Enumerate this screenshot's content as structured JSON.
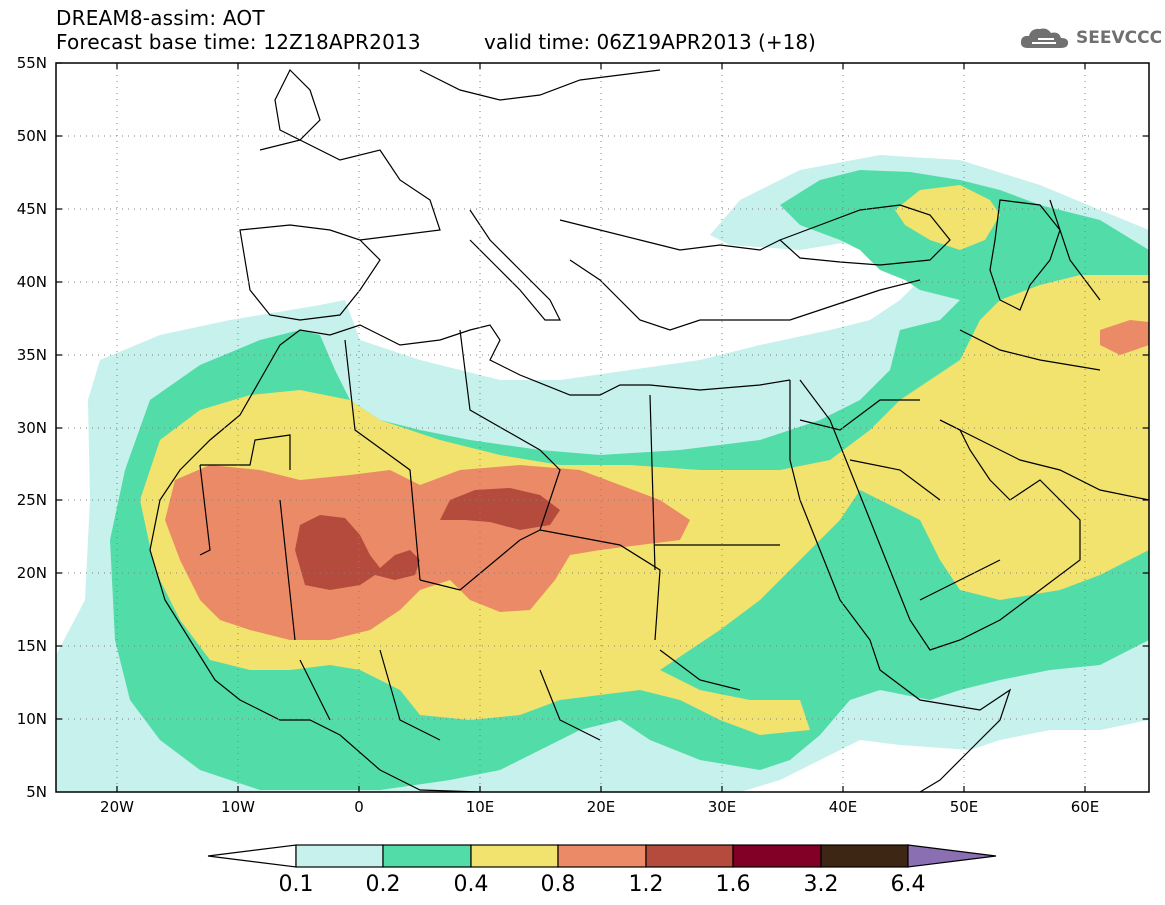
{
  "header": {
    "title": "DREAM8-assim: AOT",
    "forecast_base": "Forecast base time: 12Z18APR2013",
    "valid_time": "valid time: 06Z19APR2013 (+18)",
    "logo_text": "SEEVCCC",
    "logo_icon": "cloud-icon"
  },
  "map": {
    "lat_labels": [
      "55N",
      "50N",
      "45N",
      "40N",
      "35N",
      "30N",
      "25N",
      "20N",
      "15N",
      "10N",
      "5N"
    ],
    "lon_labels": [
      "20W",
      "10W",
      "0",
      "10E",
      "20E",
      "30E",
      "40E",
      "50E",
      "60E"
    ],
    "extent": {
      "lon": [
        -25,
        65
      ],
      "lat": [
        5,
        55
      ]
    }
  },
  "colorbar": {
    "labels": [
      "0.1",
      "0.2",
      "0.4",
      "0.8",
      "1.2",
      "1.6",
      "3.2",
      "6.4"
    ],
    "colors": [
      "#ffffff",
      "#c6f1ec",
      "#52dca8",
      "#f2e26e",
      "#eb8a66",
      "#b44b3c",
      "#820025",
      "#3d2714",
      "#8b6fb3"
    ]
  }
}
